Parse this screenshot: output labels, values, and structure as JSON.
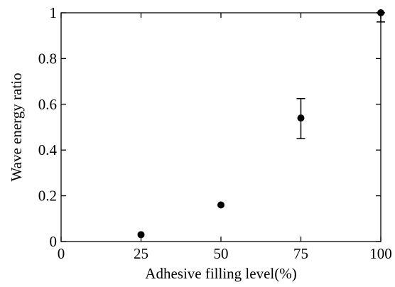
{
  "chart_data": {
    "type": "scatter",
    "xlabel": "Adhesive filling level(%)",
    "ylabel": "Wave energy ratio",
    "xlim": [
      0,
      100
    ],
    "ylim": [
      0,
      1
    ],
    "x_ticks": [
      "0",
      "25",
      "50",
      "75",
      "100"
    ],
    "y_ticks": [
      "0",
      "0.2",
      "0.4",
      "0.6",
      "0.8",
      "1"
    ],
    "grid": false,
    "series": [
      {
        "x": [
          25,
          50,
          75,
          100
        ],
        "y": [
          0.03,
          0.16,
          0.54,
          1.0
        ],
        "err_low": [
          0.0,
          0.0,
          0.09,
          0.04
        ],
        "err_high": [
          0.0,
          0.0,
          0.085,
          0.0
        ]
      }
    ]
  }
}
